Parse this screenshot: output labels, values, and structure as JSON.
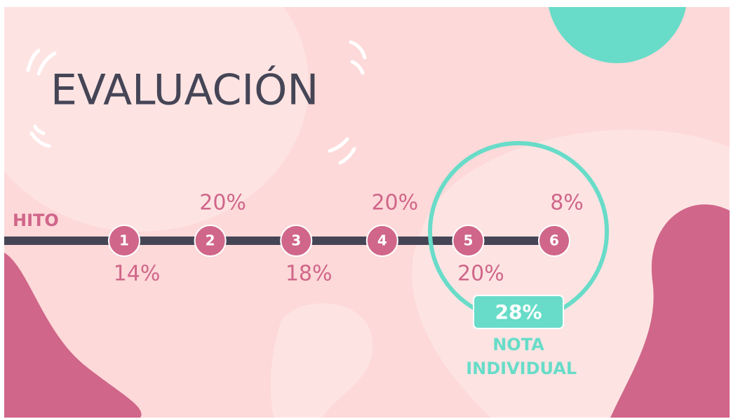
{
  "title": "EVALUACIÓN",
  "axis_label": "HITO",
  "milestones": [
    {
      "number": "1",
      "weight": "14%"
    },
    {
      "number": "2",
      "weight": "20%"
    },
    {
      "number": "3",
      "weight": "18%"
    },
    {
      "number": "4",
      "weight": "20%"
    },
    {
      "number": "5",
      "weight": "20%"
    },
    {
      "number": "6",
      "weight": "8%"
    }
  ],
  "highlight": {
    "weight": "28%",
    "label": "NOTA INDIVIDUAL"
  }
}
